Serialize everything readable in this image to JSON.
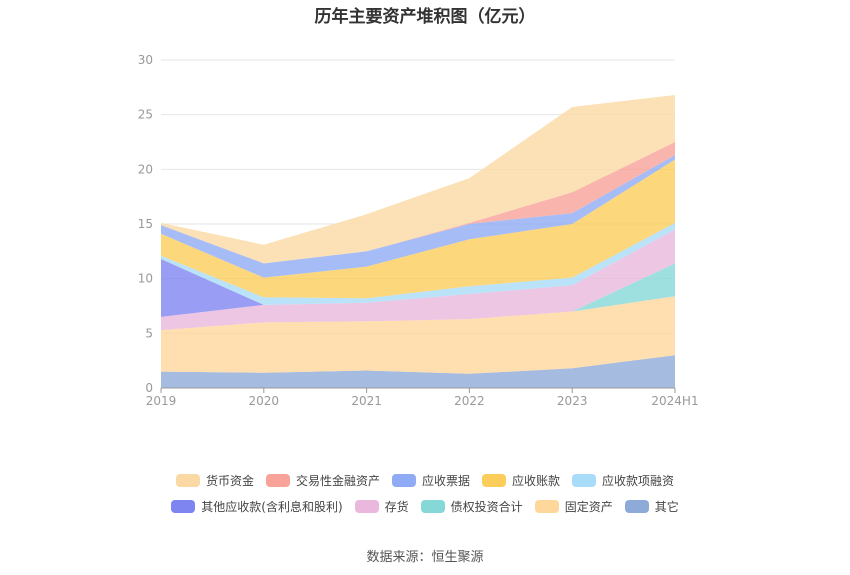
{
  "chart_data": {
    "type": "area",
    "stacked": true,
    "title": "历年主要资产堆积图（亿元）",
    "categories": [
      "2019",
      "2020",
      "2021",
      "2022",
      "2023",
      "2024H1"
    ],
    "ylim": [
      0,
      30
    ],
    "yticks": [
      0,
      5,
      10,
      15,
      20,
      25,
      30
    ],
    "grid": true,
    "legend_position": "bottom",
    "series": [
      {
        "name": "其它",
        "color": "#8eaad8",
        "values": [
          1.5,
          1.4,
          1.6,
          1.3,
          1.8,
          3.0
        ]
      },
      {
        "name": "固定资产",
        "color": "#ffd79b",
        "values": [
          3.8,
          4.6,
          4.5,
          5.0,
          5.2,
          5.4
        ]
      },
      {
        "name": "债权投资合计",
        "color": "#86d8d8",
        "values": [
          0,
          0,
          0,
          0,
          0,
          3.0
        ]
      },
      {
        "name": "存货",
        "color": "#e9b8dc",
        "values": [
          1.2,
          1.6,
          1.7,
          2.3,
          2.4,
          3.1
        ]
      },
      {
        "name": "其他应收款(含利息和股利)",
        "color": "#7f85f0",
        "values": [
          5.3,
          0,
          0,
          0,
          0,
          0
        ]
      },
      {
        "name": "应收款项融资",
        "color": "#a9dcf8",
        "values": [
          0.3,
          0.7,
          0.4,
          0.7,
          0.7,
          0.6
        ]
      },
      {
        "name": "应收账款",
        "color": "#fccd5a",
        "values": [
          2.0,
          1.8,
          2.9,
          4.3,
          4.9,
          5.8
        ]
      },
      {
        "name": "应收票据",
        "color": "#8fabf5",
        "values": [
          0.8,
          1.3,
          1.4,
          1.4,
          1.0,
          0.4
        ]
      },
      {
        "name": "交易性金融资产",
        "color": "#f8a399",
        "values": [
          0,
          0,
          0,
          0.1,
          1.9,
          1.2
        ]
      },
      {
        "name": "货币资金",
        "color": "#fbd9a4",
        "values": [
          0.2,
          1.7,
          3.4,
          4.1,
          7.8,
          4.3
        ]
      }
    ]
  },
  "legend_rows": [
    [
      {
        "label": "货币资金",
        "color": "#fbd9a4"
      },
      {
        "label": "交易性金融资产",
        "color": "#f8a399"
      },
      {
        "label": "应收票据",
        "color": "#8fabf5"
      },
      {
        "label": "应收账款",
        "color": "#fccd5a"
      },
      {
        "label": "应收款项融资",
        "color": "#a9dcf8"
      }
    ],
    [
      {
        "label": "其他应收款(含利息和股利)",
        "color": "#7f85f0"
      },
      {
        "label": "存货",
        "color": "#e9b8dc"
      },
      {
        "label": "债权投资合计",
        "color": "#86d8d8"
      },
      {
        "label": "固定资产",
        "color": "#ffd79b"
      },
      {
        "label": "其它",
        "color": "#8eaad8"
      }
    ]
  ],
  "source": "数据来源：恒生聚源"
}
